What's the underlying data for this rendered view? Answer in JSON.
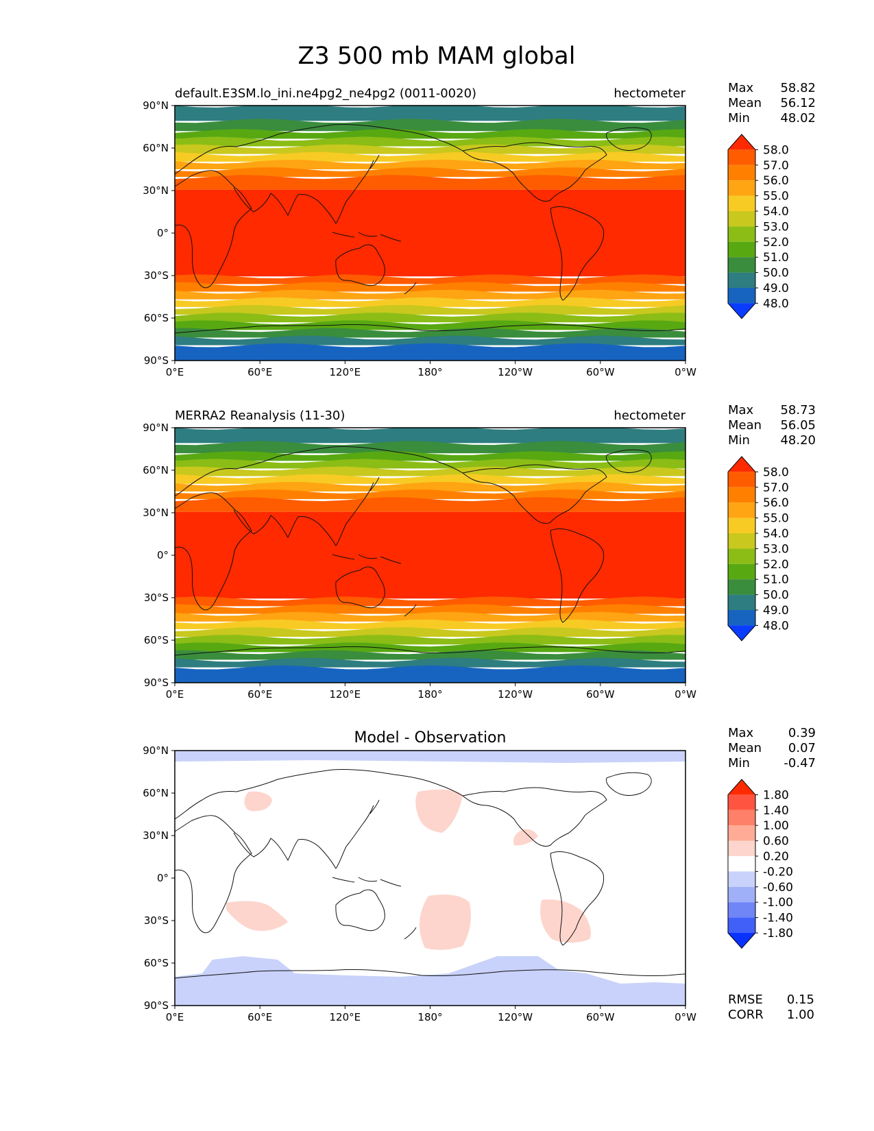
{
  "figure": {
    "title": "Z3 500 mb MAM global"
  },
  "axes": {
    "lat_ticks": [
      "90°N",
      "60°N",
      "30°N",
      "0°",
      "30°S",
      "60°S",
      "90°S"
    ],
    "lon_ticks": [
      "0°E",
      "60°E",
      "120°E",
      "180°",
      "120°W",
      "60°W",
      "0°W"
    ]
  },
  "panels": [
    {
      "left_title": "default.E3SM.lo_ini.ne4pg2_ne4pg2 (0011-0020)",
      "center_title": "",
      "units": "hectometer",
      "stats": [
        {
          "label": "Max",
          "value": "58.82"
        },
        {
          "label": "Mean",
          "value": "56.12"
        },
        {
          "label": "Min",
          "value": "48.02"
        }
      ],
      "colorbar_labels": [
        "58.0",
        "57.0",
        "56.0",
        "55.0",
        "54.0",
        "53.0",
        "52.0",
        "51.0",
        "50.0",
        "49.0",
        "48.0"
      ],
      "colorbar_colors": [
        "#ff2a00",
        "#ff5c00",
        "#ff8000",
        "#ffa412",
        "#f7cb24",
        "#c9c81e",
        "#8bbd16",
        "#58a812",
        "#3a8d3c",
        "#2e7d80",
        "#1764c0",
        "#0a3cff"
      ],
      "footer": []
    },
    {
      "left_title": "MERRA2 Reanalysis (11-30)",
      "center_title": "",
      "units": "hectometer",
      "stats": [
        {
          "label": "Max",
          "value": "58.73"
        },
        {
          "label": "Mean",
          "value": "56.05"
        },
        {
          "label": "Min",
          "value": "48.20"
        }
      ],
      "colorbar_labels": [
        "58.0",
        "57.0",
        "56.0",
        "55.0",
        "54.0",
        "53.0",
        "52.0",
        "51.0",
        "50.0",
        "49.0",
        "48.0"
      ],
      "colorbar_colors": [
        "#ff2a00",
        "#ff5c00",
        "#ff8000",
        "#ffa412",
        "#f7cb24",
        "#c9c81e",
        "#8bbd16",
        "#58a812",
        "#3a8d3c",
        "#2e7d80",
        "#1764c0",
        "#0a3cff"
      ],
      "footer": []
    },
    {
      "left_title": "",
      "center_title": "Model - Observation",
      "units": "",
      "stats": [
        {
          "label": "Max",
          "value": "0.39"
        },
        {
          "label": "Mean",
          "value": "0.07"
        },
        {
          "label": "Min",
          "value": "-0.47"
        }
      ],
      "colorbar_labels": [
        "1.80",
        "1.40",
        "1.00",
        "0.60",
        "0.20",
        "-0.20",
        "-0.60",
        "-1.00",
        "-1.40",
        "-1.80"
      ],
      "colorbar_colors": [
        "#ff2a00",
        "#ff5540",
        "#ff8068",
        "#ffab96",
        "#fdd5cc",
        "#ffffff",
        "#c8d2fa",
        "#a0b0f8",
        "#7085f6",
        "#4060f8",
        "#0a32ff"
      ],
      "footer": [
        {
          "label": "RMSE",
          "value": "0.15"
        },
        {
          "label": "CORR",
          "value": "1.00"
        }
      ]
    }
  ]
}
